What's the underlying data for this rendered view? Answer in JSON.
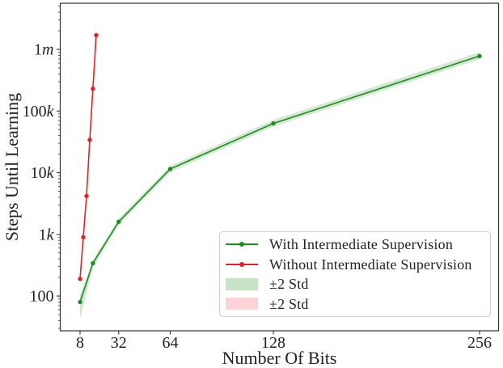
{
  "figure": {
    "background": "#ffffff",
    "spine_color": "#333333",
    "text_color": "#222222"
  },
  "chart_data": {
    "type": "line",
    "title": "",
    "xlabel": "Number Of Bits",
    "ylabel": "Steps Until Learning",
    "x_scale": "linear",
    "y_scale": "log",
    "xlim": [
      -4.3,
      267.8
    ],
    "ylim": [
      27.3,
      5600000
    ],
    "grid": false,
    "legend_position": "lower right",
    "x_ticks": [
      {
        "value": 8,
        "label": "8"
      },
      {
        "value": 32,
        "label": "32"
      },
      {
        "value": 64,
        "label": "64"
      },
      {
        "value": 128,
        "label": "128"
      },
      {
        "value": 256,
        "label": "256"
      }
    ],
    "y_ticks": [
      {
        "value": 100,
        "label": "100"
      },
      {
        "value": 1000,
        "label": "1k"
      },
      {
        "value": 10000,
        "label": "10k"
      },
      {
        "value": 100000,
        "label": "100k"
      },
      {
        "value": 1000000,
        "label": "1m"
      }
    ],
    "series": [
      {
        "name": "With Intermediate Supervision",
        "color": "#218a21",
        "band_fill": "rgba(34,139,34,0.2)",
        "marker": "circle",
        "x": [
          8,
          16,
          32,
          64,
          128,
          256
        ],
        "y": [
          80,
          340,
          1600,
          11500,
          63000,
          780000
        ],
        "band_lower": [
          42,
          295,
          1430,
          10200,
          56000,
          690000
        ],
        "band_upper": [
          105,
          385,
          1800,
          12900,
          72000,
          900000
        ]
      },
      {
        "name": "Without Intermediate Supervision",
        "color": "#e02423",
        "band_fill": "rgba(228,40,50,0.16)",
        "marker": "circle",
        "x": [
          8,
          10,
          12,
          14,
          16,
          18
        ],
        "y": [
          190,
          900,
          4200,
          34000,
          230000,
          1700000
        ],
        "band_lower": [
          150,
          790,
          3750,
          29000,
          198000,
          1250000
        ],
        "band_upper": [
          245,
          1020,
          4750,
          40000,
          267000,
          3100000
        ]
      }
    ],
    "legend": {
      "items": [
        {
          "label": "With Intermediate Supervision",
          "type": "line",
          "color": "#218a21"
        },
        {
          "label": "Without Intermediate Supervision",
          "type": "line",
          "color": "#e02423"
        },
        {
          "label": "±2 Std",
          "type": "patch",
          "color": "rgba(34,139,34,0.25)"
        },
        {
          "label": "±2 Std",
          "type": "patch",
          "color": "rgba(228,40,50,0.2)"
        }
      ]
    }
  }
}
